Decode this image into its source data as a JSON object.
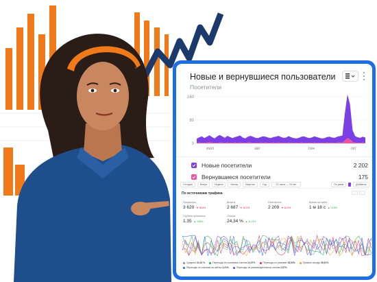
{
  "widget": {
    "title": "Новые и вернувшиеся пользователи",
    "subtitle": "Посетители",
    "colors": {
      "frame": "#1d6fe0",
      "accent": "#7b3fe4",
      "pink": "#f050a0"
    }
  },
  "chart_data": {
    "type": "area",
    "y_ticks": [
      "160",
      "80",
      "0"
    ],
    "x_ticks": [
      "июл",
      "авг",
      "сен",
      "окт"
    ],
    "ylim": [
      0,
      160
    ],
    "series": [
      {
        "name": "Новые посетители",
        "color": "#7b3fe4",
        "values": [
          14,
          18,
          22,
          16,
          20,
          24,
          19,
          15,
          22,
          26,
          21,
          17,
          23,
          20,
          16,
          19,
          22,
          24,
          18,
          15,
          20,
          23,
          21,
          17,
          16,
          19,
          22,
          20,
          18,
          16,
          19,
          21,
          23,
          20,
          17,
          18,
          22,
          19,
          16,
          15,
          17,
          20,
          22,
          19,
          16,
          18,
          21,
          20,
          17,
          15,
          16,
          19,
          21,
          18,
          17,
          20,
          22,
          24,
          95,
          150,
          120,
          40,
          22,
          19,
          17,
          20,
          18
        ]
      },
      {
        "name": "Вернувшиеся посетители",
        "color": "#f050a0",
        "values": [
          2,
          3,
          2,
          2,
          3,
          4,
          3,
          2,
          2,
          3,
          3,
          2,
          3,
          2,
          2,
          3,
          2,
          3,
          2,
          2,
          3,
          3,
          2,
          2,
          2,
          3,
          2,
          3,
          2,
          2,
          3,
          2,
          3,
          2,
          2,
          2,
          3,
          2,
          2,
          2,
          2,
          3,
          2,
          2,
          2,
          2,
          3,
          2,
          2,
          2,
          2,
          3,
          2,
          2,
          2,
          3,
          3,
          3,
          10,
          18,
          14,
          5,
          3,
          2,
          2,
          3,
          2
        ]
      }
    ]
  },
  "legend": [
    {
      "label": "Новые посетители",
      "value": "2 202",
      "color": "#7b3fe4"
    },
    {
      "label": "Вернувшиеся посетители",
      "value": "175",
      "color": "#f050a0"
    }
  ],
  "mini": {
    "toolbar": [
      "Сегодня",
      "Вчера",
      "Неделя",
      "Месяц",
      "Квартал",
      "Год"
    ],
    "date_range": "21 июля — 20 окт",
    "group": "По дням",
    "add_label": "Добавить",
    "section_title": "По источникам трафика",
    "metrics": [
      {
        "label": "Просмотры",
        "value": "3 620",
        "delta": "▼ 38,8%",
        "dir": "down"
      },
      {
        "label": "Визиты",
        "value": "2 687",
        "delta": "▼ 40,4%",
        "dir": "down"
      },
      {
        "label": "Посетители",
        "value": "2 209",
        "delta": "▼ 46,9%",
        "dir": "down"
      },
      {
        "label": "Время на сайте",
        "value": "1 м 18 с",
        "delta": "▲ 74,6%",
        "dir": "up"
      },
      {
        "label": "Глубина просмотра",
        "value": "1.35",
        "delta": "▲ 3,84%",
        "dir": "up"
      },
      {
        "label": "Отказы",
        "value": "24,34 %",
        "delta": "▲ 11,21%",
        "dir": "up"
      }
    ],
    "legend_row1": [
      {
        "label": "Среднее",
        "value": "24,34 %",
        "color": "#888"
      },
      {
        "label": "Переходы из поисковых систем",
        "value": "14,07%",
        "color": "#2aa84a"
      },
      {
        "label": "Переходы по рекламе",
        "value": "18,53%",
        "color": "#e0245e"
      },
      {
        "label": "Прямые заходы",
        "value": "28,51%",
        "color": "#f0a020"
      }
    ],
    "legend_row2": [
      {
        "label": "Переходы по ссылкам на сайтах",
        "value": "3,21%",
        "color": "#1d6fe0"
      },
      {
        "label": "Переходы из рекомендательных систем",
        "value": "2,67%",
        "color": "#7b3fe4"
      }
    ]
  },
  "illustration": {
    "subject": "woman-pointing",
    "colors": {
      "shirt": "#1f4e8c",
      "orange": "#f07a1a",
      "navy": "#1b3a6b"
    }
  }
}
